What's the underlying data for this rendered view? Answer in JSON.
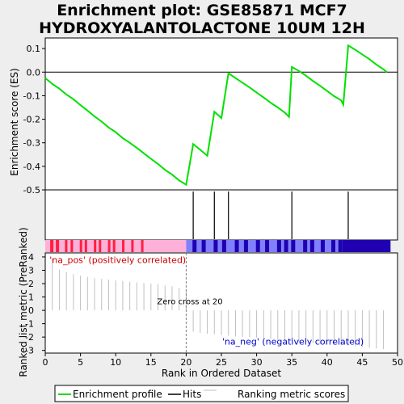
{
  "chart_data": {
    "title_line1": "Enrichment plot: GSE85871 MCF7",
    "title_line2": "HYDROXYALANTOLACTONE 10UM 12H",
    "es_panel": {
      "type": "line",
      "ylabel": "Enrichment score (ES)",
      "ylim": [
        -0.5,
        0.145
      ],
      "yticks": [
        0.1,
        0.0,
        -0.1,
        -0.2,
        -0.3,
        -0.4,
        -0.5
      ],
      "ytick_labels": [
        "0.1",
        "0.0",
        "-0.1",
        "-0.2",
        "-0.3",
        "-0.4",
        "-0.5"
      ],
      "curve_color": "#00e000",
      "points": [
        [
          0,
          -0.025
        ],
        [
          1,
          -0.05
        ],
        [
          2,
          -0.07
        ],
        [
          3,
          -0.095
        ],
        [
          4,
          -0.115
        ],
        [
          5,
          -0.14
        ],
        [
          6,
          -0.163
        ],
        [
          7,
          -0.188
        ],
        [
          8,
          -0.21
        ],
        [
          9,
          -0.235
        ],
        [
          10,
          -0.255
        ],
        [
          11,
          -0.28
        ],
        [
          12,
          -0.3
        ],
        [
          13,
          -0.322
        ],
        [
          14,
          -0.345
        ],
        [
          15,
          -0.368
        ],
        [
          16,
          -0.39
        ],
        [
          17,
          -0.415
        ],
        [
          18,
          -0.435
        ],
        [
          19,
          -0.46
        ],
        [
          20,
          -0.478
        ],
        [
          21,
          -0.305
        ],
        [
          22,
          -0.33
        ],
        [
          23,
          -0.355
        ],
        [
          24,
          -0.168
        ],
        [
          25,
          -0.195
        ],
        [
          26,
          -0.005
        ],
        [
          27,
          -0.025
        ],
        [
          28,
          -0.045
        ],
        [
          29,
          -0.065
        ],
        [
          30,
          -0.087
        ],
        [
          31,
          -0.108
        ],
        [
          32,
          -0.13
        ],
        [
          33,
          -0.15
        ],
        [
          34,
          -0.172
        ],
        [
          34.6,
          -0.19
        ],
        [
          35,
          0.022
        ],
        [
          36,
          0.005
        ],
        [
          37,
          -0.015
        ],
        [
          38,
          -0.038
        ],
        [
          39,
          -0.058
        ],
        [
          40,
          -0.08
        ],
        [
          41,
          -0.102
        ],
        [
          42,
          -0.12
        ],
        [
          42.3,
          -0.138
        ],
        [
          43,
          0.113
        ],
        [
          44,
          0.095
        ],
        [
          45,
          0.075
        ],
        [
          46,
          0.055
        ],
        [
          47,
          0.032
        ],
        [
          48,
          0.012
        ],
        [
          48.5,
          0.0
        ]
      ]
    },
    "hits": [
      21,
      24,
      26,
      35,
      43
    ],
    "color_bar": {
      "positive_stripes": [
        0.7,
        1.5,
        2.8,
        3.6,
        4.9,
        5.6,
        6.9,
        7.6,
        8.9,
        9.6,
        10.9,
        12.2,
        13.6
      ],
      "negative_stripes": [
        20.9,
        22.2,
        23.9,
        25.1,
        26.9,
        28.2,
        29.9,
        31.2,
        32.9,
        33.9,
        34.9,
        36.6,
        37.6,
        39.1,
        40.6,
        41.6
      ],
      "positive_color": "#ff2040",
      "positive_light": "#ffb0d8",
      "negative_color": "#2000b0",
      "negative_light": "#8080ff"
    },
    "metric_panel": {
      "type": "bar",
      "ylabel": "Ranked list metric (PreRanked)",
      "ylim": [
        -3.2,
        4.3
      ],
      "yticks": [
        4,
        3,
        2,
        1,
        0,
        -1,
        -2,
        -3
      ],
      "ytick_labels": [
        "4",
        "3",
        "2",
        "1",
        "0",
        "-1",
        "-2",
        "-3"
      ],
      "values": [
        3.9,
        3.05,
        2.85,
        2.7,
        2.6,
        2.5,
        2.4,
        2.35,
        2.3,
        2.25,
        2.2,
        2.15,
        2.1,
        2.05,
        2.0,
        1.95,
        1.85,
        1.8,
        1.7,
        1.6,
        -1.6,
        -1.7,
        -1.75,
        -1.8,
        -1.85,
        -1.9,
        -1.95,
        -2.0,
        -2.0,
        -2.05,
        -2.1,
        -2.15,
        -2.2,
        -2.25,
        -2.3,
        -2.35,
        -2.4,
        -2.45,
        -2.5,
        -2.55,
        -2.6,
        -2.6,
        -2.65,
        -2.7,
        -2.75,
        -2.8,
        -2.85,
        -2.9
      ],
      "zero_cross_x": 20,
      "zero_cross_label": "Zero cross at 20",
      "pos_label": "'na_pos' (positively correlated)",
      "neg_label": "'na_neg' (negatively correlated)",
      "pos_label_color": "#cc0000",
      "neg_label_color": "#0000cc"
    },
    "x_axis": {
      "label": "Rank in Ordered Dataset",
      "xlim": [
        0,
        50
      ],
      "ticks": [
        0,
        5,
        10,
        15,
        20,
        25,
        30,
        35,
        40,
        45,
        50
      ],
      "tick_labels": [
        "0",
        "5",
        "10",
        "15",
        "20",
        "25",
        "30",
        "35",
        "40",
        "45",
        "50"
      ]
    },
    "legend": {
      "entries": [
        "Enrichment profile",
        "Hits",
        "Ranking metric scores"
      ],
      "colors": [
        "#00e000",
        "#000000",
        "#c0c0c0"
      ]
    }
  }
}
